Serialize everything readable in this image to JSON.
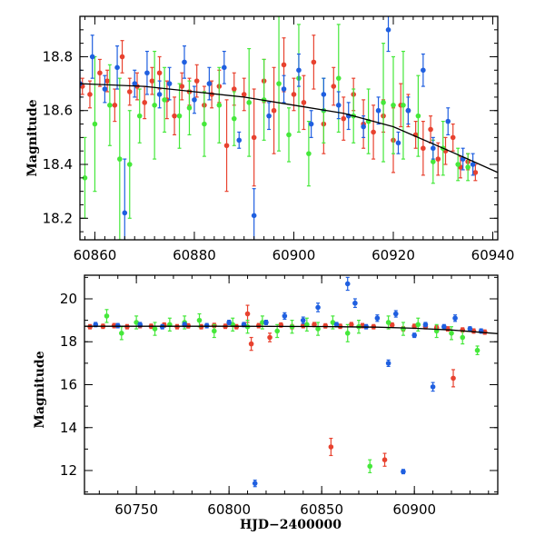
{
  "colors": {
    "r": "#e8422f",
    "g": "#45e83a",
    "b": "#1f5fe0",
    "model": "#000000"
  },
  "chart_data": [
    {
      "type": "scatter",
      "panel": "top",
      "xlabel": "",
      "ylabel": "Magnitude",
      "xlim": [
        60857,
        60941
      ],
      "ylim": [
        18.95,
        18.12
      ],
      "y_inverted": true,
      "xticks": [
        60860,
        60880,
        60900,
        60920,
        60940
      ],
      "xtick_labels": [
        "60860",
        "60880",
        "60900",
        "60920",
        "60940"
      ],
      "yticks": [
        18.2,
        18.4,
        18.6,
        18.8
      ],
      "ytick_labels": [
        "18.2",
        "18.4",
        "18.6",
        "18.8"
      ],
      "model_curve": {
        "x": [
          60857,
          60870,
          60880,
          60890,
          60900,
          60910,
          60920,
          60925,
          60930,
          60935,
          60941
        ],
        "y": [
          18.7,
          18.69,
          18.67,
          18.65,
          18.62,
          18.59,
          18.54,
          18.5,
          18.46,
          18.42,
          18.37
        ]
      },
      "series": [
        {
          "color_key": "r",
          "x": [
            60857.5,
            60859,
            60861,
            60862.5,
            60864,
            60865.5,
            60867,
            60868.5,
            60870,
            60871.5,
            60873,
            60874.5,
            60876,
            60877.5,
            60879,
            60880.5,
            60882,
            60883.5,
            60885,
            60886.5,
            60888,
            60890,
            60892,
            60894,
            60896,
            60898,
            60900,
            60902,
            60904,
            60906,
            60908,
            60910,
            60912,
            60914,
            60916,
            60918,
            60920,
            60921.5,
            60923,
            60924.5,
            60926,
            60927.5,
            60929,
            60930.5,
            60932,
            60933.5,
            60935,
            60936.5
          ],
          "y": [
            18.69,
            18.66,
            18.74,
            18.71,
            18.62,
            18.8,
            18.67,
            18.69,
            18.63,
            18.71,
            18.74,
            18.64,
            18.58,
            18.69,
            18.67,
            18.71,
            18.62,
            18.66,
            18.69,
            18.47,
            18.68,
            18.66,
            18.5,
            18.71,
            18.6,
            18.77,
            18.66,
            18.63,
            18.78,
            18.55,
            18.69,
            18.57,
            18.66,
            18.55,
            18.52,
            18.58,
            18.49,
            18.62,
            18.6,
            18.51,
            18.46,
            18.53,
            18.42,
            18.45,
            18.5,
            18.39,
            18.41,
            18.37
          ],
          "err": [
            0.03,
            0.05,
            0.05,
            0.04,
            0.06,
            0.06,
            0.05,
            0.05,
            0.06,
            0.05,
            0.06,
            0.07,
            0.07,
            0.05,
            0.05,
            0.06,
            0.07,
            0.05,
            0.06,
            0.17,
            0.06,
            0.06,
            0.18,
            0.08,
            0.16,
            0.1,
            0.06,
            0.1,
            0.1,
            0.11,
            0.07,
            0.08,
            0.06,
            0.09,
            0.1,
            0.06,
            0.12,
            0.08,
            0.06,
            0.05,
            0.1,
            0.05,
            0.06,
            0.05,
            0.05,
            0.04,
            0.03,
            0.03
          ]
        },
        {
          "color_key": "g",
          "x": [
            60858,
            60860,
            60863,
            60865,
            60867,
            60869,
            60872,
            60874,
            60877,
            60879,
            60882,
            60885,
            60888,
            60891,
            60894,
            60897,
            60899,
            60901,
            60903,
            60906,
            60909,
            60912,
            60915,
            60918,
            60920,
            60922,
            60925,
            60928,
            60930,
            60933,
            60935
          ],
          "y": [
            18.35,
            18.55,
            18.62,
            18.42,
            18.4,
            18.58,
            18.62,
            18.64,
            18.58,
            18.61,
            18.55,
            18.62,
            18.57,
            18.63,
            18.64,
            18.7,
            18.51,
            18.72,
            18.44,
            18.6,
            18.72,
            18.58,
            18.56,
            18.63,
            18.62,
            18.62,
            18.58,
            18.41,
            18.46,
            18.4,
            18.39
          ],
          "err": [
            0.15,
            0.25,
            0.15,
            0.3,
            0.2,
            0.1,
            0.2,
            0.12,
            0.12,
            0.1,
            0.12,
            0.14,
            0.1,
            0.2,
            0.15,
            0.25,
            0.1,
            0.2,
            0.12,
            0.12,
            0.2,
            0.1,
            0.12,
            0.22,
            0.18,
            0.2,
            0.15,
            0.08,
            0.1,
            0.06,
            0.05
          ]
        },
        {
          "color_key": "b",
          "x": [
            60857,
            60859.5,
            60862,
            60864.5,
            60866,
            60868,
            60870.5,
            60873,
            60875,
            60878,
            60880,
            60883,
            60886,
            60889,
            60892,
            60895,
            60898,
            60901,
            60903.5,
            60906,
            60909,
            60911,
            60914,
            60917,
            60919,
            60921,
            60923,
            60926,
            60928,
            60931,
            60934,
            60936
          ],
          "y": [
            18.7,
            18.8,
            18.68,
            18.76,
            18.22,
            18.7,
            18.74,
            18.66,
            18.7,
            18.78,
            18.64,
            18.7,
            18.76,
            18.49,
            18.21,
            18.58,
            18.68,
            18.75,
            18.55,
            18.66,
            18.62,
            18.58,
            18.54,
            18.6,
            18.9,
            18.48,
            18.6,
            18.75,
            18.46,
            18.56,
            18.42,
            18.4
          ],
          "err": [
            0.05,
            0.08,
            0.05,
            0.08,
            0.2,
            0.05,
            0.08,
            0.05,
            0.06,
            0.06,
            0.05,
            0.06,
            0.06,
            0.03,
            0.1,
            0.05,
            0.05,
            0.06,
            0.05,
            0.06,
            0.05,
            0.05,
            0.04,
            0.05,
            0.08,
            0.04,
            0.05,
            0.06,
            0.04,
            0.05,
            0.04,
            0.04
          ]
        }
      ]
    },
    {
      "type": "scatter",
      "panel": "bottom",
      "xlabel": "HJD−2400000",
      "ylabel": "Magnitude",
      "xlim": [
        60722,
        60945
      ],
      "ylim": [
        21.1,
        10.9
      ],
      "y_inverted": true,
      "xticks": [
        60750,
        60800,
        60850,
        60900
      ],
      "xtick_labels": [
        "60750",
        "60800",
        "60850",
        "60900"
      ],
      "yticks": [
        12,
        14,
        16,
        18,
        20
      ],
      "ytick_labels": [
        "12",
        "14",
        "16",
        "18",
        "20"
      ],
      "model_curve": {
        "x": [
          60722,
          60800,
          60850,
          60880,
          60900,
          60920,
          60945
        ],
        "y": [
          18.72,
          18.72,
          18.71,
          18.68,
          18.63,
          18.55,
          18.38
        ]
      },
      "series": [
        {
          "color_key": "r",
          "x": [
            60725,
            60732,
            60738,
            60745,
            60752,
            60758,
            60765,
            60772,
            60778,
            60785,
            60792,
            60798,
            60804,
            60810,
            60812,
            60816,
            60822,
            60828,
            60834,
            60840,
            60846,
            60852,
            60855,
            60860,
            60866,
            60872,
            60878,
            60884,
            60888,
            60894,
            60900,
            60906,
            60912,
            60918,
            60921,
            60926,
            60932,
            60938
          ],
          "y": [
            18.7,
            18.72,
            18.75,
            18.7,
            18.75,
            18.72,
            18.78,
            18.7,
            18.74,
            18.7,
            18.76,
            18.72,
            18.7,
            19.3,
            17.9,
            18.75,
            18.2,
            18.78,
            18.7,
            18.75,
            18.8,
            18.74,
            13.1,
            18.72,
            18.8,
            18.75,
            18.7,
            12.5,
            18.78,
            18.6,
            18.72,
            18.7,
            18.65,
            18.6,
            16.3,
            18.55,
            18.5,
            18.45
          ],
          "err": [
            0.1,
            0.1,
            0.1,
            0.1,
            0.1,
            0.1,
            0.1,
            0.1,
            0.1,
            0.1,
            0.1,
            0.1,
            0.1,
            0.4,
            0.3,
            0.1,
            0.2,
            0.1,
            0.1,
            0.1,
            0.1,
            0.1,
            0.4,
            0.1,
            0.1,
            0.1,
            0.1,
            0.3,
            0.1,
            0.1,
            0.1,
            0.1,
            0.1,
            0.1,
            0.4,
            0.1,
            0.1,
            0.1
          ]
        },
        {
          "color_key": "g",
          "x": [
            60734,
            60742,
            60750,
            60760,
            60768,
            60776,
            60784,
            60792,
            60802,
            60810,
            60818,
            60826,
            60834,
            60842,
            60848,
            60856,
            60864,
            60870,
            60876,
            60886,
            60894,
            60902,
            60912,
            60920,
            60926,
            60934
          ],
          "y": [
            19.2,
            18.4,
            18.9,
            18.6,
            18.8,
            18.9,
            19.0,
            18.5,
            18.8,
            18.7,
            18.9,
            18.5,
            18.7,
            18.8,
            18.6,
            18.9,
            18.4,
            18.7,
            12.2,
            18.9,
            18.6,
            18.8,
            18.5,
            18.4,
            18.2,
            17.6
          ],
          "err": [
            0.3,
            0.3,
            0.3,
            0.3,
            0.3,
            0.3,
            0.3,
            0.3,
            0.3,
            0.3,
            0.3,
            0.3,
            0.3,
            0.3,
            0.3,
            0.3,
            0.4,
            0.3,
            0.3,
            0.3,
            0.3,
            0.3,
            0.3,
            0.3,
            0.3,
            0.2
          ]
        },
        {
          "color_key": "b",
          "x": [
            60728,
            60740,
            60752,
            60764,
            60776,
            60788,
            60800,
            60808,
            60814,
            60820,
            60830,
            60840,
            60848,
            60858,
            60864,
            60868,
            60874,
            60880,
            60886,
            60890,
            60894,
            60900,
            60906,
            60910,
            60916,
            60922,
            60930,
            60936
          ],
          "y": [
            18.8,
            18.75,
            18.8,
            18.7,
            18.8,
            18.75,
            18.9,
            18.8,
            11.4,
            18.9,
            19.2,
            19.0,
            19.6,
            18.8,
            20.7,
            19.8,
            18.7,
            19.1,
            17.0,
            19.3,
            11.95,
            18.3,
            18.8,
            15.9,
            18.7,
            19.1,
            18.6,
            18.5
          ],
          "err": [
            0.1,
            0.1,
            0.1,
            0.1,
            0.1,
            0.1,
            0.1,
            0.1,
            0.15,
            0.1,
            0.15,
            0.15,
            0.2,
            0.1,
            0.3,
            0.2,
            0.1,
            0.15,
            0.15,
            0.15,
            0.1,
            0.1,
            0.1,
            0.2,
            0.1,
            0.15,
            0.1,
            0.1
          ]
        }
      ]
    }
  ]
}
